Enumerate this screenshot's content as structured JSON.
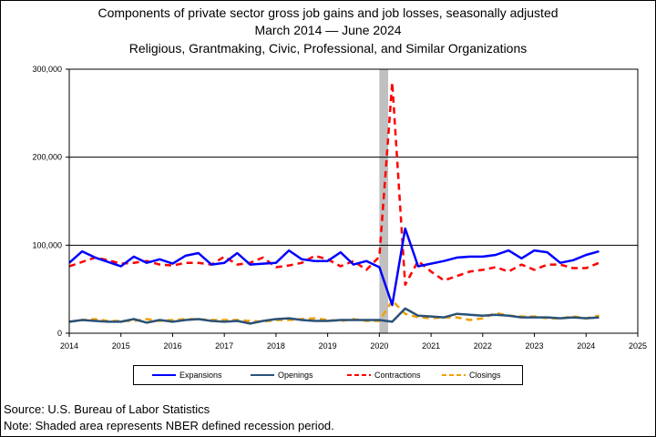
{
  "title": {
    "line1": "Components of private sector gross job gains and job losses, seasonally adjusted",
    "line2": "March 2014 — June 2024",
    "line3": "Religious, Grantmaking, Civic, Professional, and Similar Organizations"
  },
  "footer": {
    "source": "Source: U.S. Bureau of Labor Statistics",
    "note": "Note: Shaded area represents NBER defined recession period."
  },
  "chart_data": {
    "type": "line",
    "title": "Components of private sector gross job gains and job losses, seasonally adjusted",
    "xlabel": "",
    "ylabel": "",
    "xlim": [
      2014,
      2025
    ],
    "ylim": [
      0,
      300000
    ],
    "x_ticks": [
      "2014",
      "2015",
      "2016",
      "2017",
      "2018",
      "2019",
      "2020",
      "2021",
      "2022",
      "2023",
      "2024",
      "2025"
    ],
    "y_ticks": [
      "0",
      "100,000",
      "200,000",
      "300,000"
    ],
    "grid": "horizontal",
    "legend_position": "bottom",
    "recession": {
      "start": 2020.0,
      "end": 2020.17
    },
    "x": [
      2014.0,
      2014.25,
      2014.5,
      2014.75,
      2015.0,
      2015.25,
      2015.5,
      2015.75,
      2016.0,
      2016.25,
      2016.5,
      2016.75,
      2017.0,
      2017.25,
      2017.5,
      2017.75,
      2018.0,
      2018.25,
      2018.5,
      2018.75,
      2019.0,
      2019.25,
      2019.5,
      2019.75,
      2020.0,
      2020.25,
      2020.5,
      2020.75,
      2021.0,
      2021.25,
      2021.5,
      2021.75,
      2022.0,
      2022.25,
      2022.5,
      2022.75,
      2023.0,
      2023.25,
      2023.5,
      2023.75,
      2024.0,
      2024.25
    ],
    "series": [
      {
        "name": "Expansions",
        "color": "#0000ff",
        "style": "solid",
        "width": 2.5,
        "values": [
          80000,
          93000,
          86000,
          81000,
          76000,
          87000,
          80000,
          84000,
          79000,
          88000,
          91000,
          78000,
          80000,
          91000,
          78000,
          79000,
          80000,
          94000,
          84000,
          82000,
          82000,
          92000,
          78000,
          82000,
          75000,
          32000,
          119000,
          76000,
          79000,
          82000,
          86000,
          87000,
          87000,
          89000,
          94000,
          85000,
          94000,
          92000,
          80000,
          83000,
          89000,
          93000
        ]
      },
      {
        "name": "Openings",
        "color": "#2b5177",
        "style": "solid",
        "width": 2.5,
        "values": [
          13000,
          15000,
          14000,
          13000,
          13000,
          16000,
          12000,
          15000,
          13000,
          15000,
          16000,
          14000,
          13000,
          14000,
          11000,
          14000,
          16000,
          17000,
          15000,
          14000,
          14000,
          15000,
          15000,
          15000,
          15000,
          13000,
          28000,
          20000,
          19000,
          18000,
          22000,
          21000,
          20000,
          21000,
          20000,
          18000,
          18000,
          18000,
          17000,
          18000,
          17000,
          18000
        ]
      },
      {
        "name": "Contractions",
        "color": "#ff0000",
        "style": "dashed",
        "width": 2.5,
        "values": [
          76000,
          81000,
          86000,
          83000,
          79000,
          80000,
          82000,
          78000,
          77000,
          80000,
          80000,
          78000,
          87000,
          78000,
          80000,
          86000,
          75000,
          77000,
          80000,
          88000,
          84000,
          76000,
          82000,
          72000,
          87000,
          285000,
          55000,
          82000,
          70000,
          60000,
          65000,
          70000,
          72000,
          75000,
          70000,
          78000,
          72000,
          78000,
          78000,
          74000,
          74000,
          80000
        ]
      },
      {
        "name": "Closings",
        "color": "#f0a000",
        "style": "dashed",
        "width": 2.5,
        "values": [
          13000,
          15000,
          16000,
          14000,
          14000,
          14000,
          16000,
          14000,
          15000,
          16000,
          16000,
          15000,
          15000,
          15000,
          14000,
          13000,
          15000,
          15000,
          16000,
          17000,
          15000,
          14000,
          16000,
          14000,
          14000,
          37000,
          22000,
          18000,
          17000,
          18000,
          18000,
          15000,
          17000,
          23000,
          20000,
          19000,
          19000,
          17000,
          17000,
          19000,
          17000,
          20000
        ]
      }
    ]
  }
}
